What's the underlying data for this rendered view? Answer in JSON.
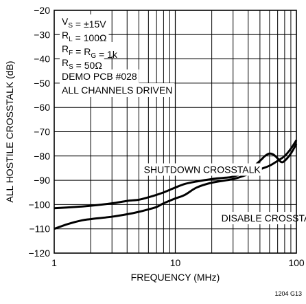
{
  "chart_data": {
    "type": "line",
    "xlabel": "FREQUENCY (MHz)",
    "ylabel": "ALL HOSTILE CROSSTALK (dB)",
    "xscale": "log",
    "xlim": [
      1,
      100
    ],
    "ylim": [
      -120,
      -20
    ],
    "grid": true,
    "x_ticks": [
      {
        "value": 1,
        "label": "1"
      },
      {
        "value": 10,
        "label": "10"
      },
      {
        "value": 100,
        "label": "100"
      }
    ],
    "y_ticks": [
      {
        "value": -20,
        "label": "−20"
      },
      {
        "value": -30,
        "label": "−30"
      },
      {
        "value": -40,
        "label": "−40"
      },
      {
        "value": -50,
        "label": "−50"
      },
      {
        "value": -60,
        "label": "−60"
      },
      {
        "value": -70,
        "label": "−70"
      },
      {
        "value": -80,
        "label": "−80"
      },
      {
        "value": -90,
        "label": "−90"
      },
      {
        "value": -100,
        "label": "−100"
      },
      {
        "value": -110,
        "label": "−110"
      },
      {
        "value": -120,
        "label": "−120"
      }
    ],
    "conditions": [
      {
        "parts": [
          {
            "t": "V"
          },
          {
            "t": "S",
            "sub": true
          },
          {
            "t": " = ±15V"
          }
        ]
      },
      {
        "parts": [
          {
            "t": "R"
          },
          {
            "t": "L",
            "sub": true
          },
          {
            "t": " = 100Ω"
          }
        ]
      },
      {
        "parts": [
          {
            "t": "R"
          },
          {
            "t": "F",
            "sub": true
          },
          {
            "t": " = R"
          },
          {
            "t": "G",
            "sub": true
          },
          {
            "t": " = 1k"
          }
        ]
      },
      {
        "parts": [
          {
            "t": "R"
          },
          {
            "t": "S",
            "sub": true
          },
          {
            "t": " = 50Ω"
          }
        ]
      },
      {
        "parts": [
          {
            "t": "DEMO PCB #028"
          }
        ]
      },
      {
        "parts": [
          {
            "t": "ALL CHANNELS DRIVEN"
          }
        ]
      }
    ],
    "series": [
      {
        "name": "SHUTDOWN CROSSTALK",
        "x": [
          1,
          1.5,
          2,
          3,
          4,
          5,
          6,
          7,
          8,
          10,
          12,
          15,
          20,
          25,
          30,
          40,
          50,
          55,
          60,
          65,
          70,
          75,
          80,
          90,
          100
        ],
        "y": [
          -101.5,
          -101,
          -100.5,
          -99.5,
          -98.5,
          -98,
          -97,
          -96,
          -95,
          -93,
          -91.5,
          -90.5,
          -89.5,
          -89,
          -88.5,
          -86,
          -82,
          -80,
          -79,
          -79.5,
          -81,
          -82.5,
          -82,
          -79,
          -75
        ]
      },
      {
        "name": "DISABLE CROSSTALK",
        "x": [
          1,
          1.3,
          1.7,
          2,
          3,
          4,
          5,
          6,
          7,
          8,
          10,
          12,
          15,
          20,
          30,
          40,
          50,
          60,
          70,
          80,
          90,
          100
        ],
        "y": [
          -110,
          -108,
          -106.5,
          -106,
          -105,
          -104,
          -103,
          -102,
          -101,
          -99.5,
          -97.5,
          -96,
          -93,
          -91,
          -89.5,
          -87.5,
          -85.5,
          -84,
          -82,
          -80,
          -77,
          -73.5
        ]
      }
    ],
    "annotations": [
      {
        "text": "SHUTDOWN CROSSTALK",
        "x": 5.5,
        "y": -87
      },
      {
        "text": "DISABLE CROSSTALK",
        "x": 24,
        "y": -107
      }
    ],
    "figure_code": "1204 G13"
  }
}
